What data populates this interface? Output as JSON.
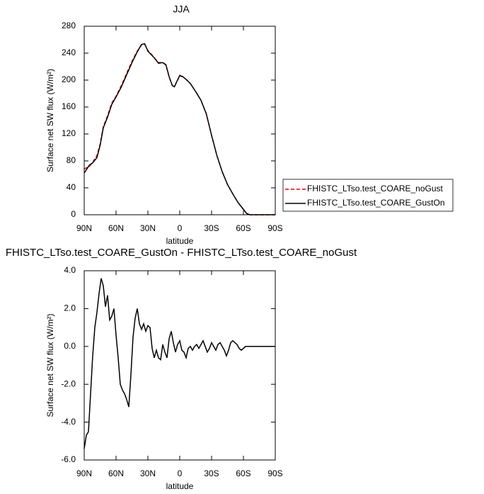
{
  "chart_data": [
    {
      "type": "line",
      "title": "JJA",
      "xlabel": "latitude",
      "ylabel": "Surface net SW flux (W/m²)",
      "xlim": [
        90,
        -90
      ],
      "ylim": [
        0,
        280
      ],
      "xticks": [
        {
          "value": 90,
          "label": "90N"
        },
        {
          "value": 60,
          "label": "60N"
        },
        {
          "value": 30,
          "label": "30N"
        },
        0,
        {
          "value": -30,
          "label": "30S"
        },
        {
          "value": -60,
          "label": "60S"
        },
        {
          "value": -90,
          "label": "90S"
        }
      ],
      "yticks": [
        0,
        40,
        80,
        120,
        160,
        200,
        240,
        280
      ],
      "x": [
        90,
        85,
        82,
        78,
        75,
        72,
        68,
        64,
        60,
        55,
        50,
        45,
        40,
        36,
        33,
        30,
        27,
        24,
        20,
        16,
        13,
        10,
        7,
        5,
        3,
        0,
        -3,
        -6,
        -10,
        -15,
        -20,
        -25,
        -30,
        -35,
        -40,
        -45,
        -50,
        -55,
        -60,
        -63,
        -66,
        -90
      ],
      "legend": "right",
      "series": [
        {
          "name": "FHISTC_LTso.test_COARE_noGust",
          "color": "#e00000",
          "style": "dashed",
          "values": [
            68,
            72,
            78,
            88,
            105,
            131,
            147,
            166,
            176,
            192,
            210,
            228,
            243,
            252,
            253,
            244,
            239,
            233,
            226,
            226,
            222,
            205,
            192,
            190,
            197,
            206,
            205,
            201,
            195,
            183,
            170,
            150,
            118,
            88,
            64,
            45,
            31,
            18,
            8,
            2,
            0,
            0
          ]
        },
        {
          "name": "FHISTC_LTso.test_COARE_GustOn",
          "color": "#000000",
          "style": "solid",
          "values": [
            62,
            74,
            77,
            85,
            103,
            129,
            145,
            164,
            175,
            190,
            208,
            226,
            242,
            253,
            254,
            243,
            238,
            233,
            225,
            226,
            223,
            205,
            192,
            190,
            197,
            207,
            205,
            201,
            195,
            183,
            170,
            150,
            118,
            88,
            64,
            45,
            31,
            18,
            8,
            2,
            0,
            0
          ]
        }
      ]
    },
    {
      "type": "line",
      "title": "FHISTC_LTso.test_COARE_GustOn - FHISTC_LTso.test_COARE_noGust",
      "xlabel": "latitude",
      "ylabel": "Surface net SW flux (W/m²)",
      "xlim": [
        90,
        -90
      ],
      "ylim": [
        -6,
        4
      ],
      "xticks": [
        {
          "value": 90,
          "label": "90N"
        },
        {
          "value": 60,
          "label": "60N"
        },
        {
          "value": 30,
          "label": "30N"
        },
        0,
        {
          "value": -30,
          "label": "30S"
        },
        {
          "value": -60,
          "label": "60S"
        },
        {
          "value": -90,
          "label": "90S"
        }
      ],
      "yticks": [
        {
          "value": -6,
          "label": "-6.0"
        },
        {
          "value": -4,
          "label": "-4.0"
        },
        {
          "value": -2,
          "label": "-2.0"
        },
        {
          "value": 0,
          "label": "0.0"
        },
        {
          "value": 2,
          "label": "2.0"
        },
        {
          "value": 4,
          "label": "4.0"
        }
      ],
      "x": [
        90,
        88,
        86,
        84,
        82,
        80,
        78,
        76,
        74,
        72,
        70,
        68,
        66,
        64,
        62,
        60,
        58,
        56,
        54,
        52,
        50,
        48,
        46,
        44,
        42,
        40,
        38,
        36,
        34,
        32,
        30,
        28,
        26,
        24,
        22,
        20,
        18,
        16,
        14,
        12,
        10,
        8,
        6,
        4,
        2,
        0,
        -2,
        -4,
        -6,
        -8,
        -10,
        -12,
        -14,
        -16,
        -18,
        -20,
        -22,
        -24,
        -26,
        -28,
        -30,
        -32,
        -34,
        -36,
        -38,
        -40,
        -42,
        -44,
        -46,
        -48,
        -50,
        -52,
        -54,
        -56,
        -58,
        -60,
        -62,
        -64,
        -90
      ],
      "series": [
        {
          "color": "#000000",
          "style": "solid",
          "values": [
            -5.4,
            -4.7,
            -4.5,
            -2.5,
            -0.5,
            1.0,
            1.8,
            2.8,
            3.6,
            3.2,
            2.1,
            2.7,
            1.4,
            1.6,
            2.0,
            0.6,
            -0.6,
            -2.0,
            -2.3,
            -2.5,
            -2.8,
            -3.2,
            -1.5,
            0.5,
            1.5,
            2.0,
            1.2,
            0.9,
            1.2,
            0.8,
            1.1,
            1.0,
            -0.1,
            -0.6,
            -0.2,
            -0.6,
            -0.7,
            0.1,
            -0.3,
            -0.6,
            0.4,
            0.8,
            0.2,
            -0.3,
            0.1,
            0.3,
            -0.2,
            -0.3,
            -0.6,
            -0.1,
            0.0,
            -0.2,
            0.0,
            0.1,
            -0.1,
            0.1,
            0.3,
            0.0,
            -0.3,
            -0.1,
            0.2,
            0.0,
            -0.2,
            0.1,
            0.2,
            0.0,
            -0.2,
            -0.5,
            -0.2,
            0.2,
            0.3,
            0.2,
            0.1,
            -0.1,
            -0.2,
            -0.1,
            0.0,
            0,
            0
          ]
        }
      ]
    }
  ]
}
